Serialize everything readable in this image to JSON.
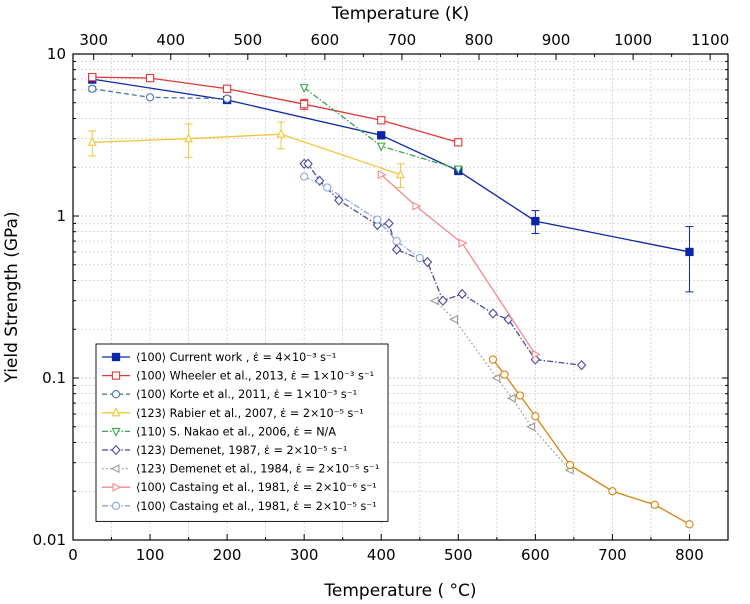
{
  "chart_data": {
    "type": "line",
    "xlabel": "Temperature ( °C)",
    "x2label": "Temperature (K)",
    "ylabel": "Yield Strength (GPa)",
    "xlim": [
      0,
      850
    ],
    "ylim": [
      0.01,
      10
    ],
    "yscale": "log",
    "grid": true,
    "legend_position": "bottom-left",
    "x_ticks": [
      "0",
      "100",
      "200",
      "300",
      "400",
      "500",
      "600",
      "700",
      "800"
    ],
    "x2_ticks": [
      "300",
      "400",
      "500",
      "600",
      "700",
      "800",
      "900",
      "1000",
      "1100"
    ],
    "y_ticks": [
      "0.01",
      "0.1",
      "1",
      "10"
    ],
    "series": [
      {
        "name": "⟨100⟩ Current work , ε̇ = 4×10⁻³ s⁻¹",
        "color": "#0b27a8",
        "marker": "square-filled",
        "dash": "solid",
        "x": [
          25,
          200,
          400,
          500,
          600,
          800
        ],
        "y": [
          7.0,
          5.2,
          3.15,
          1.9,
          0.93,
          0.6
        ],
        "err": [
          0.4,
          0,
          0.15,
          0.1,
          0.15,
          0.26
        ]
      },
      {
        "name": "⟨100⟩ Wheeler et al., 2013, ε̇ = 1×10⁻³ s⁻¹",
        "color": "#e0393a",
        "marker": "square-open",
        "dash": "solid",
        "x": [
          25,
          100,
          200,
          300,
          400,
          500
        ],
        "y": [
          7.2,
          7.1,
          6.1,
          4.9,
          3.9,
          2.85
        ],
        "err": [
          0.3,
          0.3,
          0.3,
          0.35,
          0.15,
          0.1
        ]
      },
      {
        "name": "⟨100⟩ Korte et al., 2011, ε̇ = 1×10⁻³ s⁻¹",
        "color": "#4a78a8",
        "marker": "circle-open",
        "dash": "dashed",
        "x": [
          25,
          100,
          200
        ],
        "y": [
          6.1,
          5.4,
          5.3
        ],
        "err": [
          0.2,
          0,
          0
        ]
      },
      {
        "name": "⟨123⟩ Rabier et al., 2007, ε̇ = 2×10⁻⁵ s⁻¹",
        "color": "#f2c53a",
        "marker": "triangle-up-open",
        "dash": "solid",
        "x": [
          25,
          150,
          270,
          425
        ],
        "y": [
          2.85,
          3.0,
          3.2,
          1.8
        ],
        "err": [
          0.5,
          0.7,
          0.6,
          0.3
        ]
      },
      {
        "name": "⟨110⟩ S. Nakao et al., 2006, ε̇ = N/A",
        "color": "#3aa84a",
        "marker": "triangle-down-open",
        "dash": "dashdot",
        "x": [
          300,
          400,
          500
        ],
        "y": [
          6.2,
          2.7,
          1.95
        ],
        "err": [
          0,
          0,
          0
        ]
      },
      {
        "name": "⟨123⟩ Demenet, 1987, ε̇ = 2×10⁻⁵ s⁻¹",
        "color": "#4a4aa0",
        "marker": "diamond-open",
        "dash": "dashdot",
        "x": [
          300,
          305,
          320,
          345,
          395,
          410,
          420,
          460,
          480,
          505,
          545,
          565,
          600,
          660
        ],
        "y": [
          2.1,
          2.1,
          1.65,
          1.25,
          0.88,
          0.9,
          0.62,
          0.52,
          0.3,
          0.33,
          0.25,
          0.23,
          0.13,
          0.12
        ],
        "err": []
      },
      {
        "name": "⟨123⟩ Demenet et al., 1984, ε̇ = 2×10⁻⁵ s⁻¹",
        "color": "#9a9a9a",
        "marker": "triangle-left-open",
        "dash": "dotted",
        "x": [
          470,
          495,
          550,
          570,
          595,
          645
        ],
        "y": [
          0.3,
          0.23,
          0.1,
          0.075,
          0.05,
          0.027
        ],
        "err": []
      },
      {
        "name": "⟨100⟩ Castaing et al., 1981, ε̇ = 2×10⁻⁶ s⁻¹",
        "color": "#f28a8a",
        "marker": "triangle-right-open",
        "dash": "solid",
        "x": [
          400,
          445,
          505,
          600
        ],
        "y": [
          1.8,
          1.15,
          0.68,
          0.14
        ],
        "err": []
      },
      {
        "name": "⟨100⟩ Castaing et al., 1981, ε̇ = 2×10⁻⁵ s⁻¹",
        "color": "#8aa6d8",
        "marker": "circle-open",
        "dash": "dashdot",
        "x": [
          300,
          330,
          395,
          420,
          450
        ],
        "y": [
          1.75,
          1.5,
          0.95,
          0.7,
          0.55
        ],
        "err": []
      },
      {
        "name": "",
        "color": "#d9820f",
        "marker": "circle-open",
        "dash": "solid",
        "x": [
          545,
          560,
          580,
          600,
          645,
          700,
          755,
          800
        ],
        "y": [
          0.13,
          0.105,
          0.078,
          0.058,
          0.029,
          0.02,
          0.0165,
          0.0125
        ],
        "err": []
      }
    ]
  }
}
